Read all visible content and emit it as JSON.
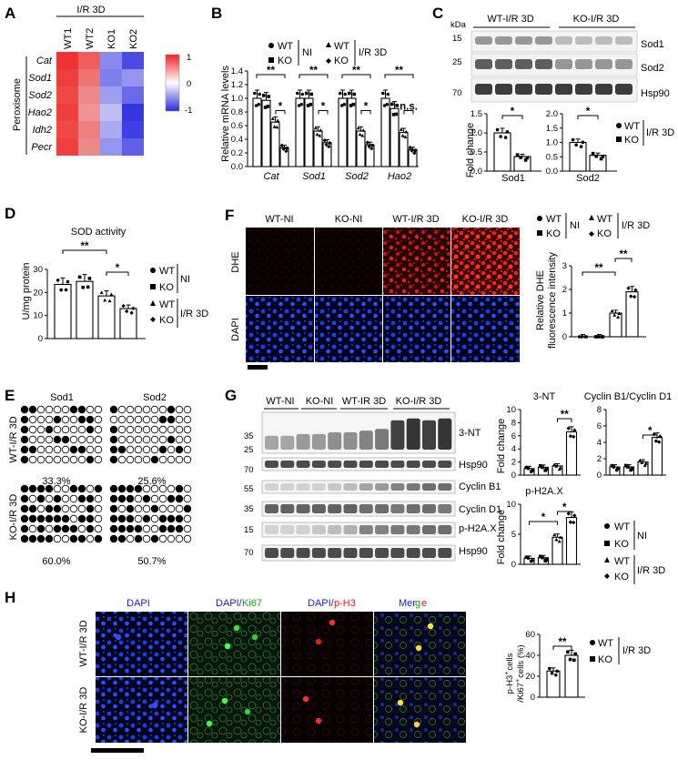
{
  "panels": {
    "A": {
      "letter": "A",
      "group": "I/R 3D",
      "cols": [
        "WT1",
        "WT2",
        "KO1",
        "KO2"
      ],
      "rows": [
        "Cat",
        "Sod1",
        "Sod2",
        "Hao2",
        "Idh2",
        "Pecr"
      ],
      "side_label": "Peroxisome",
      "values": [
        [
          0.95,
          0.75,
          -0.55,
          -0.85
        ],
        [
          0.9,
          0.65,
          -0.6,
          -0.5
        ],
        [
          0.85,
          0.55,
          -0.45,
          -0.7
        ],
        [
          0.9,
          0.5,
          -0.3,
          -0.95
        ],
        [
          0.85,
          0.6,
          -0.4,
          -0.9
        ],
        [
          0.9,
          0.55,
          -0.5,
          -0.75
        ]
      ],
      "colorbar": {
        "ticks": [
          "1",
          "0",
          "-1"
        ],
        "high": "#ee2222",
        "mid": "#ffffff",
        "low": "#2a2ae0"
      }
    },
    "B": {
      "letter": "B",
      "ylabel": "Relative mRNA levels",
      "yticks": [
        "0.0",
        "0.2",
        "0.4",
        "0.6",
        "0.8",
        "1.0",
        "1.2",
        "1.4"
      ],
      "genes": [
        "Cat",
        "Sod1",
        "Sod2",
        "Hao2"
      ],
      "legend": {
        "wt": "WT",
        "ko": "KO",
        "ni": "NI",
        "ir": "I/R 3D"
      },
      "sig": [
        "**",
        "*",
        "**",
        "*",
        "**",
        "*",
        "**",
        "n.s."
      ]
    },
    "C": {
      "letter": "C",
      "kda": "kDa",
      "groups": [
        "WT-I/R 3D",
        "KO-I/R 3D"
      ],
      "markers": [
        "15",
        "25",
        "70"
      ],
      "bands": [
        "Sod1",
        "Sod2",
        "Hsp90"
      ],
      "ylabel": "Fold change",
      "xcats": [
        "Sod1",
        "Sod2"
      ],
      "yticks1": [
        "0.0",
        "0.5",
        "1.0",
        "1.5"
      ],
      "yticks2": [
        "0.0",
        "0.5",
        "1.0",
        "1.5",
        "2.0"
      ],
      "sig": [
        "*",
        "*"
      ],
      "legend": {
        "wt": "WT",
        "ko": "KO",
        "ir": "I/R 3D"
      }
    },
    "D": {
      "letter": "D",
      "title": "SOD activity",
      "ylabel": "U/mg protein",
      "yticks": [
        "0",
        "10",
        "20",
        "30"
      ],
      "sig": [
        "**",
        "*"
      ],
      "legend": {
        "wt": "WT",
        "ko": "KO",
        "ni": "NI",
        "ir": "I/R 3D"
      }
    },
    "E": {
      "letter": "E",
      "titles": [
        "Sod1",
        "Sod2"
      ],
      "rowlabels": [
        "WT-I/R 3D",
        "KO-I/R 3D"
      ],
      "pct": [
        "33.3%",
        "25.6%",
        "60.0%",
        "50.7%"
      ]
    },
    "F": {
      "letter": "F",
      "cols": [
        "WT-NI",
        "KO-NI",
        "WT-I/R 3D",
        "KO-I/R 3D"
      ],
      "rows": [
        "DHE",
        "DAPI"
      ],
      "ylabel": [
        "Relative DHE",
        "fluorescence intensity"
      ],
      "yticks": [
        "0",
        "1",
        "2",
        "3"
      ],
      "sig": [
        "**",
        "**"
      ],
      "legend": {
        "wt": "WT",
        "ko": "KO",
        "ni": "NI",
        "ir": "I/R 3D"
      }
    },
    "G": {
      "letter": "G",
      "groups": [
        "WT-NI",
        "KO-NI",
        "WT-IR 3D",
        "KO-I/R 3D"
      ],
      "markers": [
        "35",
        "25",
        "70",
        "55",
        "35",
        "15",
        "70"
      ],
      "bands": [
        "3-NT",
        "Hsp90",
        "Cyclin B1",
        "Cyclin D1",
        "p-H2A.X",
        "Hsp90"
      ],
      "chart_titles": [
        "3-NT",
        "Cyclin B1/Cyclin D1",
        "p-H2A.X"
      ],
      "ylabel": "Fold change",
      "yticks_a": [
        "0",
        "2",
        "4",
        "6",
        "8",
        "10"
      ],
      "yticks_b": [
        "0",
        "2",
        "4",
        "6",
        "8"
      ],
      "yticks_c": [
        "0",
        "5",
        "10"
      ],
      "sig": [
        "**",
        "*",
        "*",
        "*"
      ],
      "legend": {
        "wt": "WT",
        "ko": "KO",
        "ni": "NI",
        "ir": "I/R 3D"
      }
    },
    "H": {
      "letter": "H",
      "cols": [
        "DAPI",
        "DAPI/",
        "Ki67",
        "DAPI/",
        "p-H3",
        "Mer",
        "g",
        "e"
      ],
      "rows": [
        "WT-I/R 3D",
        "KO-I/R 3D"
      ],
      "ylabel": [
        "p-H3",
        "cells",
        "/Ki67",
        "cells (%)"
      ],
      "yticks": [
        "0",
        "20",
        "40",
        "60"
      ],
      "sig": [
        "**"
      ],
      "legend": {
        "wt": "WT",
        "ko": "KO",
        "ir": "I/R 3D"
      }
    }
  },
  "chart_data": [
    {
      "type": "heatmap",
      "id": "A",
      "title": "I/R 3D",
      "rows": [
        "Cat",
        "Sod1",
        "Sod2",
        "Hao2",
        "Idh2",
        "Pecr"
      ],
      "cols": [
        "WT1",
        "WT2",
        "KO1",
        "KO2"
      ],
      "values": [
        [
          0.95,
          0.75,
          -0.55,
          -0.85
        ],
        [
          0.9,
          0.65,
          -0.6,
          -0.5
        ],
        [
          0.85,
          0.55,
          -0.45,
          -0.7
        ],
        [
          0.9,
          0.5,
          -0.3,
          -0.95
        ],
        [
          0.85,
          0.6,
          -0.4,
          -0.9
        ],
        [
          0.9,
          0.55,
          -0.5,
          -0.75
        ]
      ],
      "zlim": [
        -1,
        1
      ]
    },
    {
      "type": "bar",
      "id": "B",
      "categories": [
        "Cat",
        "Sod1",
        "Sod2",
        "Hao2"
      ],
      "ylabel": "Relative mRNA levels",
      "ylim": [
        0,
        1.4
      ],
      "series": [
        {
          "name": "WT NI",
          "values": [
            1.0,
            1.0,
            1.0,
            1.0
          ]
        },
        {
          "name": "KO NI",
          "values": [
            0.97,
            1.0,
            1.0,
            0.85
          ]
        },
        {
          "name": "WT I/R 3D",
          "values": [
            0.65,
            0.52,
            0.52,
            0.5
          ]
        },
        {
          "name": "KO I/R 3D",
          "values": [
            0.28,
            0.35,
            0.32,
            0.25
          ]
        }
      ]
    },
    {
      "type": "bar",
      "id": "C1",
      "categories": [
        "Sod1"
      ],
      "ylabel": "Fold change",
      "ylim": [
        0,
        1.5
      ],
      "series": [
        {
          "name": "WT I/R 3D",
          "values": [
            1.0
          ]
        },
        {
          "name": "KO I/R 3D",
          "values": [
            0.38
          ]
        }
      ]
    },
    {
      "type": "bar",
      "id": "C2",
      "categories": [
        "Sod2"
      ],
      "ylim": [
        0,
        2.0
      ],
      "series": [
        {
          "name": "WT I/R 3D",
          "values": [
            1.0
          ]
        },
        {
          "name": "KO I/R 3D",
          "values": [
            0.55
          ]
        }
      ]
    },
    {
      "type": "bar",
      "id": "D",
      "title": "SOD activity",
      "ylabel": "U/mg protein",
      "ylim": [
        0,
        30
      ],
      "categories": [
        "WT NI",
        "KO NI",
        "WT I/R 3D",
        "KO I/R 3D"
      ],
      "values": [
        23.5,
        24.8,
        18.5,
        13.0
      ]
    },
    {
      "type": "bar",
      "id": "F",
      "ylabel": "Relative DHE fluorescence intensity",
      "ylim": [
        0,
        3
      ],
      "categories": [
        "WT NI",
        "KO NI",
        "WT I/R 3D",
        "KO I/R 3D"
      ],
      "values": [
        0.0,
        0.0,
        1.0,
        1.9
      ]
    },
    {
      "type": "bar",
      "id": "G1",
      "title": "3-NT",
      "ylabel": "Fold change",
      "ylim": [
        0,
        10
      ],
      "categories": [
        "WT NI",
        "KO NI",
        "WT I/R 3D",
        "KO I/R 3D"
      ],
      "values": [
        1.0,
        1.2,
        1.4,
        6.6
      ]
    },
    {
      "type": "bar",
      "id": "G2",
      "title": "Cyclin B1/Cyclin D1",
      "ylim": [
        0,
        8
      ],
      "categories": [
        "WT NI",
        "KO NI",
        "WT I/R 3D",
        "KO I/R 3D"
      ],
      "values": [
        1.0,
        1.0,
        1.6,
        4.6
      ]
    },
    {
      "type": "bar",
      "id": "G3",
      "title": "p-H2A.X",
      "ylabel": "Fold change",
      "ylim": [
        0,
        10
      ],
      "categories": [
        "WT NI",
        "KO NI",
        "WT I/R 3D",
        "KO I/R 3D"
      ],
      "values": [
        1.0,
        1.1,
        4.5,
        7.8
      ]
    },
    {
      "type": "bar",
      "id": "H",
      "ylabel": "p-H3+ cells /Ki67+ cells (%)",
      "ylim": [
        0,
        60
      ],
      "categories": [
        "WT I/R 3D",
        "KO I/R 3D"
      ],
      "values": [
        25,
        40
      ]
    }
  ]
}
